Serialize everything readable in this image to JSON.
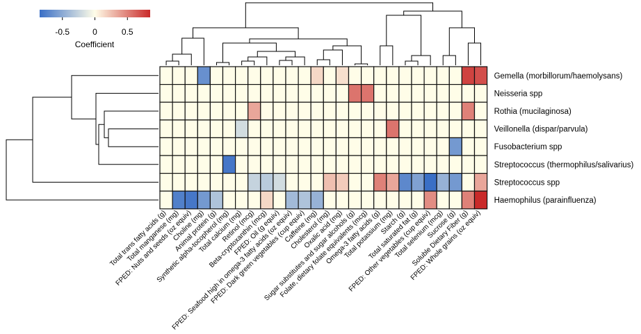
{
  "chart_data": {
    "type": "heatmap",
    "title": "",
    "legend": {
      "title": "Coefficient",
      "tick_labels": [
        "-0.5",
        "0",
        "0.5"
      ],
      "ticks": [
        -0.5,
        0,
        0.5
      ],
      "range": [
        -0.85,
        0.85
      ],
      "colors": {
        "low": "#3a6fc6",
        "mid": "#fffde8",
        "high": "#c92a2a"
      }
    },
    "rows": [
      "Gemella (morbillorum/haemolysans)",
      "Neisseria spp",
      "Rothia (mucilaginosa)",
      "Veillonella (dispar/parvula)",
      "Fusobacterium spp",
      "Streptococcus (thermophilus/salivarius)",
      "Streptococcus spp",
      "Haemophilus (parainfluenza)"
    ],
    "columns": [
      "Total trans fatty acids (g)",
      "Total manganese (mg)",
      "FPED: Nuts and seeds (oz equiv)",
      "Choline (mg)",
      "Animal protein (g)",
      "Synthetic alpha-tocopherol (mg)",
      "Total calcium (mg)",
      "Retinol (mcg)",
      "Beta-cryptoxanthin (mcg)",
      "FPED: Oil (g equiv)",
      "FPED: Seafood high in omega-3 fatty acids (oz equiv)",
      "FPED: Dark green vegetables (cup equiv)",
      "Caffeine (mg)",
      "Cholesterol (mg)",
      "Oxalic acid (mg)",
      "Sugar substitutes and sugar alcohols (g)",
      "Folate, dietary folate equivalents (mcg)",
      "Omega-3 fatty acids (g)",
      "Total potassium (mg)",
      "Starch (g)",
      "Total saturated fat (g)",
      "FPED: Other vegetables (cup equiv)",
      "Total selenium (mcg)",
      "Sucrose (g)",
      "Soluble Dietary Fiber (g)",
      "FPED: Whole grains (oz equiv)"
    ],
    "values": [
      [
        0,
        0,
        0,
        -0.65,
        0,
        0,
        0,
        0,
        0,
        0,
        0,
        0,
        0.15,
        0,
        0.12,
        0,
        0,
        0,
        0,
        0,
        0,
        0,
        0,
        0,
        0.75,
        0.7
      ],
      [
        0,
        0,
        0,
        0,
        0,
        0,
        0,
        0,
        0,
        0,
        0,
        0,
        0,
        0,
        0,
        0.55,
        0.55,
        0,
        0,
        0,
        0,
        0,
        0,
        0,
        0,
        0
      ],
      [
        0,
        0,
        0,
        0,
        0,
        0,
        0,
        0.35,
        0,
        0,
        0,
        0,
        0,
        0,
        0,
        0,
        0,
        0,
        0,
        0,
        0,
        0,
        0,
        0,
        0.5,
        0
      ],
      [
        0,
        0,
        0,
        0,
        0,
        0,
        -0.2,
        0,
        0,
        0,
        0,
        0,
        0,
        0,
        0,
        0,
        0,
        0,
        0.55,
        0,
        0,
        0,
        0,
        0,
        0,
        0
      ],
      [
        0,
        0,
        0,
        0,
        0,
        0,
        0,
        0,
        0,
        0,
        0,
        0,
        0,
        0,
        0,
        0,
        0,
        0,
        0,
        0,
        0,
        0,
        0,
        -0.6,
        0,
        0
      ],
      [
        0,
        0,
        0,
        0,
        0,
        -0.8,
        0,
        0,
        0,
        0,
        0,
        0,
        0,
        0,
        0,
        0,
        0,
        0,
        0,
        0,
        0,
        0,
        0,
        0,
        0,
        0
      ],
      [
        0,
        0,
        0,
        0,
        0,
        0,
        0,
        -0.25,
        -0.3,
        -0.2,
        0,
        0,
        0,
        0.25,
        0.2,
        0,
        0,
        0.5,
        0.35,
        -0.7,
        -0.55,
        -0.85,
        -0.45,
        -0.6,
        0,
        0.35
      ],
      [
        0,
        -0.75,
        -0.8,
        -0.6,
        -0.35,
        0,
        0,
        0,
        0.15,
        0,
        -0.4,
        -0.35,
        -0.45,
        0,
        0,
        0,
        0,
        0,
        0,
        0,
        0,
        0.45,
        0,
        0,
        0.5,
        0.85
      ]
    ]
  }
}
